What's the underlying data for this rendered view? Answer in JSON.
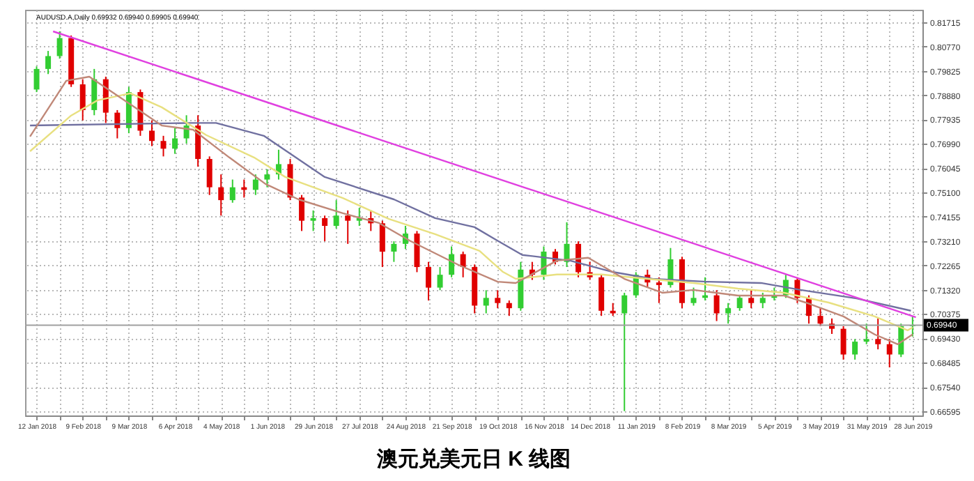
{
  "chart_data": {
    "type": "candlestick",
    "title": "澳元兑美元日 K 线图",
    "annotations": [
      "AUDUSD.A,Daily 0.69932 0.69940 0.69905 0.69940"
    ],
    "x": [
      "2018-01-12",
      "2018-01-19",
      "2018-01-26",
      "2018-02-02",
      "2018-02-09",
      "2018-02-16",
      "2018-02-23",
      "2018-03-02",
      "2018-03-09",
      "2018-03-16",
      "2018-03-23",
      "2018-03-30",
      "2018-04-06",
      "2018-04-13",
      "2018-04-20",
      "2018-04-27",
      "2018-05-04",
      "2018-05-11",
      "2018-05-18",
      "2018-05-25",
      "2018-06-01",
      "2018-06-08",
      "2018-06-15",
      "2018-06-22",
      "2018-06-29",
      "2018-07-06",
      "2018-07-13",
      "2018-07-20",
      "2018-07-27",
      "2018-08-03",
      "2018-08-10",
      "2018-08-17",
      "2018-08-24",
      "2018-08-31",
      "2018-09-07",
      "2018-09-14",
      "2018-09-21",
      "2018-09-28",
      "2018-10-05",
      "2018-10-12",
      "2018-10-19",
      "2018-10-26",
      "2018-11-02",
      "2018-11-09",
      "2018-11-16",
      "2018-11-23",
      "2018-11-30",
      "2018-12-07",
      "2018-12-14",
      "2018-12-21",
      "2018-12-28",
      "2019-01-04",
      "2019-01-11",
      "2019-01-18",
      "2019-01-25",
      "2019-02-01",
      "2019-02-08",
      "2019-02-15",
      "2019-02-22",
      "2019-03-01",
      "2019-03-08",
      "2019-03-15",
      "2019-03-22",
      "2019-03-29",
      "2019-04-05",
      "2019-04-12",
      "2019-04-19",
      "2019-04-26",
      "2019-05-03",
      "2019-05-10",
      "2019-05-17",
      "2019-05-24",
      "2019-05-31",
      "2019-06-07",
      "2019-06-14",
      "2019-06-21",
      "2019-06-28"
    ],
    "ohlc": [
      [
        0.791,
        0.8,
        0.79,
        0.799
      ],
      [
        0.799,
        0.806,
        0.797,
        0.804
      ],
      [
        0.804,
        0.8136,
        0.803,
        0.811
      ],
      [
        0.811,
        0.812,
        0.792,
        0.793
      ],
      [
        0.793,
        0.795,
        0.779,
        0.783
      ],
      [
        0.783,
        0.799,
        0.781,
        0.795
      ],
      [
        0.795,
        0.796,
        0.778,
        0.782
      ],
      [
        0.782,
        0.783,
        0.772,
        0.776
      ],
      [
        0.776,
        0.792,
        0.774,
        0.79
      ],
      [
        0.79,
        0.791,
        0.773,
        0.775
      ],
      [
        0.775,
        0.779,
        0.769,
        0.771
      ],
      [
        0.771,
        0.773,
        0.765,
        0.768
      ],
      [
        0.768,
        0.776,
        0.766,
        0.772
      ],
      [
        0.772,
        0.781,
        0.77,
        0.777
      ],
      [
        0.777,
        0.781,
        0.761,
        0.764
      ],
      [
        0.764,
        0.765,
        0.75,
        0.753
      ],
      [
        0.753,
        0.758,
        0.742,
        0.748
      ],
      [
        0.748,
        0.756,
        0.747,
        0.753
      ],
      [
        0.753,
        0.756,
        0.749,
        0.752
      ],
      [
        0.752,
        0.758,
        0.75,
        0.756
      ],
      [
        0.756,
        0.76,
        0.753,
        0.758
      ],
      [
        0.758,
        0.7676,
        0.756,
        0.762
      ],
      [
        0.762,
        0.764,
        0.748,
        0.749
      ],
      [
        0.749,
        0.75,
        0.736,
        0.74
      ],
      [
        0.74,
        0.744,
        0.736,
        0.741
      ],
      [
        0.741,
        0.742,
        0.732,
        0.738
      ],
      [
        0.738,
        0.748,
        0.737,
        0.742
      ],
      [
        0.742,
        0.744,
        0.731,
        0.74
      ],
      [
        0.74,
        0.745,
        0.738,
        0.741
      ],
      [
        0.741,
        0.744,
        0.736,
        0.739
      ],
      [
        0.739,
        0.74,
        0.722,
        0.728
      ],
      [
        0.728,
        0.732,
        0.724,
        0.731
      ],
      [
        0.731,
        0.738,
        0.729,
        0.735
      ],
      [
        0.735,
        0.736,
        0.72,
        0.722
      ],
      [
        0.722,
        0.724,
        0.709,
        0.714
      ],
      [
        0.714,
        0.722,
        0.713,
        0.719
      ],
      [
        0.719,
        0.73,
        0.718,
        0.727
      ],
      [
        0.727,
        0.728,
        0.718,
        0.722
      ],
      [
        0.722,
        0.723,
        0.704,
        0.707
      ],
      [
        0.707,
        0.713,
        0.704,
        0.71
      ],
      [
        0.71,
        0.713,
        0.706,
        0.708
      ],
      [
        0.708,
        0.709,
        0.703,
        0.706
      ],
      [
        0.706,
        0.724,
        0.705,
        0.721
      ],
      [
        0.721,
        0.724,
        0.717,
        0.719
      ],
      [
        0.719,
        0.73,
        0.717,
        0.728
      ],
      [
        0.728,
        0.729,
        0.723,
        0.724
      ],
      [
        0.724,
        0.7394,
        0.722,
        0.731
      ],
      [
        0.731,
        0.732,
        0.718,
        0.72
      ],
      [
        0.72,
        0.724,
        0.717,
        0.718
      ],
      [
        0.718,
        0.719,
        0.703,
        0.705
      ],
      [
        0.705,
        0.708,
        0.703,
        0.704
      ],
      [
        0.704,
        0.712,
        0.666,
        0.711
      ],
      [
        0.711,
        0.72,
        0.71,
        0.719
      ],
      [
        0.719,
        0.721,
        0.714,
        0.716
      ],
      [
        0.716,
        0.718,
        0.708,
        0.715
      ],
      [
        0.715,
        0.7294,
        0.714,
        0.725
      ],
      [
        0.725,
        0.726,
        0.706,
        0.708
      ],
      [
        0.708,
        0.714,
        0.707,
        0.71
      ],
      [
        0.71,
        0.718,
        0.709,
        0.711
      ],
      [
        0.711,
        0.713,
        0.701,
        0.704
      ],
      [
        0.704,
        0.708,
        0.7,
        0.706
      ],
      [
        0.706,
        0.711,
        0.705,
        0.71
      ],
      [
        0.71,
        0.713,
        0.706,
        0.708
      ],
      [
        0.708,
        0.712,
        0.706,
        0.71
      ],
      [
        0.71,
        0.714,
        0.709,
        0.711
      ],
      [
        0.711,
        0.719,
        0.71,
        0.717
      ],
      [
        0.717,
        0.718,
        0.708,
        0.71
      ],
      [
        0.71,
        0.711,
        0.7,
        0.703
      ],
      [
        0.703,
        0.706,
        0.699,
        0.7
      ],
      [
        0.7,
        0.702,
        0.696,
        0.698
      ],
      [
        0.698,
        0.699,
        0.686,
        0.688
      ],
      [
        0.688,
        0.694,
        0.686,
        0.693
      ],
      [
        0.693,
        0.7,
        0.692,
        0.694
      ],
      [
        0.694,
        0.702,
        0.69,
        0.692
      ],
      [
        0.692,
        0.694,
        0.683,
        0.688
      ],
      [
        0.688,
        0.7,
        0.687,
        0.699
      ],
      [
        0.699,
        0.703,
        0.695,
        0.6994
      ]
    ],
    "series": [
      {
        "type": "line",
        "color": "#7070a0",
        "x": [
          "2018-01-08",
          "2018-04-15",
          "2018-05-01",
          "2018-05-30",
          "2018-07-06",
          "2018-08-17",
          "2018-09-11",
          "2018-10-05",
          "2018-10-18",
          "2018-11-03",
          "2018-12-02",
          "2018-12-27",
          "2019-01-21",
          "2019-02-23",
          "2019-03-28",
          "2019-04-21",
          "2019-05-25",
          "2019-06-27"
        ],
        "values": [
          0.777,
          0.778,
          0.778,
          0.773,
          0.757,
          0.7483,
          0.741,
          0.7375,
          0.7326,
          0.7267,
          0.7245,
          0.7202,
          0.7174,
          0.7163,
          0.7158,
          0.7131,
          0.7098,
          0.705
        ]
      },
      {
        "type": "line",
        "color": "#e8e080",
        "x": [
          "2018-01-08",
          "2018-02-02",
          "2018-02-18",
          "2018-03-10",
          "2018-03-29",
          "2018-04-25",
          "2018-05-24",
          "2018-06-12",
          "2018-07-17",
          "2018-08-14",
          "2018-09-11",
          "2018-10-08",
          "2018-10-22",
          "2018-10-30",
          "2018-11-24",
          "2018-12-21",
          "2019-01-18",
          "2019-02-15",
          "2019-03-14",
          "2019-04-11",
          "2019-05-08",
          "2019-06-05",
          "2019-06-25",
          "2019-06-28"
        ],
        "values": [
          0.767,
          0.7809,
          0.7868,
          0.7895,
          0.7841,
          0.7733,
          0.7646,
          0.757,
          0.7488,
          0.7407,
          0.7348,
          0.7283,
          0.7202,
          0.7174,
          0.7191,
          0.7191,
          0.7174,
          0.7158,
          0.7136,
          0.712,
          0.7082,
          0.7028,
          0.6974,
          0.6985
        ]
      },
      {
        "type": "line",
        "color": "#c08878",
        "x": [
          "2018-01-08",
          "2018-01-30",
          "2018-02-13",
          "2018-03-10",
          "2018-03-29",
          "2018-04-17",
          "2018-05-09",
          "2018-05-31",
          "2018-06-20",
          "2018-07-17",
          "2018-08-08",
          "2018-08-27",
          "2018-09-25",
          "2018-10-19",
          "2018-10-30",
          "2018-11-24",
          "2018-12-13",
          "2019-01-04",
          "2019-01-27",
          "2019-02-15",
          "2019-03-14",
          "2019-04-11",
          "2019-04-24",
          "2019-05-17",
          "2019-06-05",
          "2019-06-19",
          "2019-06-28"
        ],
        "values": [
          0.7727,
          0.7944,
          0.796,
          0.7852,
          0.777,
          0.7754,
          0.7646,
          0.7543,
          0.7483,
          0.7429,
          0.7391,
          0.7321,
          0.7229,
          0.7163,
          0.7158,
          0.7245,
          0.7256,
          0.7174,
          0.712,
          0.7131,
          0.7109,
          0.7109,
          0.7082,
          0.7028,
          0.6958,
          0.692,
          0.6958
        ]
      },
      {
        "type": "line",
        "color": "#e040e0",
        "x": [
          "2018-01-22",
          "2019-06-30"
        ],
        "values": [
          0.8136,
          0.7025
        ]
      }
    ],
    "ref_lines": [
      {
        "axis": "y",
        "value": 0.6994,
        "label": "0.69940",
        "color": "#a0a0a0"
      }
    ],
    "xlim": [
      "2018-01-05",
      "2019-07-04"
    ],
    "xticks": [
      {
        "value": "2018-01-12",
        "label": "12 Jan 2018"
      },
      {
        "value": "2018-01-26",
        "label": null
      },
      {
        "value": "2018-02-09",
        "label": "9 Feb 2018"
      },
      {
        "value": "2018-02-23",
        "label": null
      },
      {
        "value": "2018-03-09",
        "label": "9 Mar 2018"
      },
      {
        "value": "2018-03-23",
        "label": null
      },
      {
        "value": "2018-04-06",
        "label": "6 Apr 2018"
      },
      {
        "value": "2018-04-20",
        "label": null
      },
      {
        "value": "2018-05-04",
        "label": "4 May 2018"
      },
      {
        "value": "2018-05-18",
        "label": null
      },
      {
        "value": "2018-06-01",
        "label": "1 Jun 2018"
      },
      {
        "value": "2018-06-15",
        "label": null
      },
      {
        "value": "2018-06-29",
        "label": "29 Jun 2018"
      },
      {
        "value": "2018-07-13",
        "label": null
      },
      {
        "value": "2018-07-27",
        "label": "27 Jul 2018"
      },
      {
        "value": "2018-08-10",
        "label": null
      },
      {
        "value": "2018-08-24",
        "label": "24 Aug 2018"
      },
      {
        "value": "2018-09-07",
        "label": null
      },
      {
        "value": "2018-09-21",
        "label": "21 Sep 2018"
      },
      {
        "value": "2018-10-05",
        "label": null
      },
      {
        "value": "2018-10-19",
        "label": "19 Oct 2018"
      },
      {
        "value": "2018-11-02",
        "label": null
      },
      {
        "value": "2018-11-16",
        "label": "16 Nov 2018"
      },
      {
        "value": "2018-11-30",
        "label": null
      },
      {
        "value": "2018-12-14",
        "label": "14 Dec 2018"
      },
      {
        "value": "2018-12-28",
        "label": null
      },
      {
        "value": "2019-01-11",
        "label": "11 Jan 2019"
      },
      {
        "value": "2019-01-25",
        "label": null
      },
      {
        "value": "2019-02-08",
        "label": "8 Feb 2019"
      },
      {
        "value": "2019-02-22",
        "label": null
      },
      {
        "value": "2019-03-08",
        "label": "8 Mar 2019"
      },
      {
        "value": "2019-03-22",
        "label": null
      },
      {
        "value": "2019-04-05",
        "label": "5 Apr 2019"
      },
      {
        "value": "2019-04-19",
        "label": null
      },
      {
        "value": "2019-05-03",
        "label": "3 May 2019"
      },
      {
        "value": "2019-05-17",
        "label": null
      },
      {
        "value": "2019-05-31",
        "label": "31 May 2019"
      },
      {
        "value": "2019-06-14",
        "label": null
      },
      {
        "value": "2019-06-28",
        "label": "28 Jun 2019"
      }
    ],
    "ylim": [
      0.6643,
      0.822
    ],
    "yticks": [
      {
        "value": 0.81715,
        "label": "0.81715"
      },
      {
        "value": 0.8077,
        "label": "0.80770"
      },
      {
        "value": 0.79825,
        "label": "0.79825"
      },
      {
        "value": 0.7888,
        "label": "0.78880"
      },
      {
        "value": 0.77935,
        "label": "0.77935"
      },
      {
        "value": 0.7699,
        "label": "0.76990"
      },
      {
        "value": 0.76045,
        "label": "0.76045"
      },
      {
        "value": 0.751,
        "label": "0.75100"
      },
      {
        "value": 0.74155,
        "label": "0.74155"
      },
      {
        "value": 0.7321,
        "label": "0.73210"
      },
      {
        "value": 0.72265,
        "label": "0.72265"
      },
      {
        "value": 0.7132,
        "label": "0.71320"
      },
      {
        "value": 0.70375,
        "label": "0.70375"
      },
      {
        "value": 0.6943,
        "label": "0.69430"
      },
      {
        "value": 0.68485,
        "label": "0.68485"
      },
      {
        "value": 0.6754,
        "label": "0.67540"
      },
      {
        "value": 0.66595,
        "label": "0.66595"
      }
    ],
    "grid": true
  }
}
